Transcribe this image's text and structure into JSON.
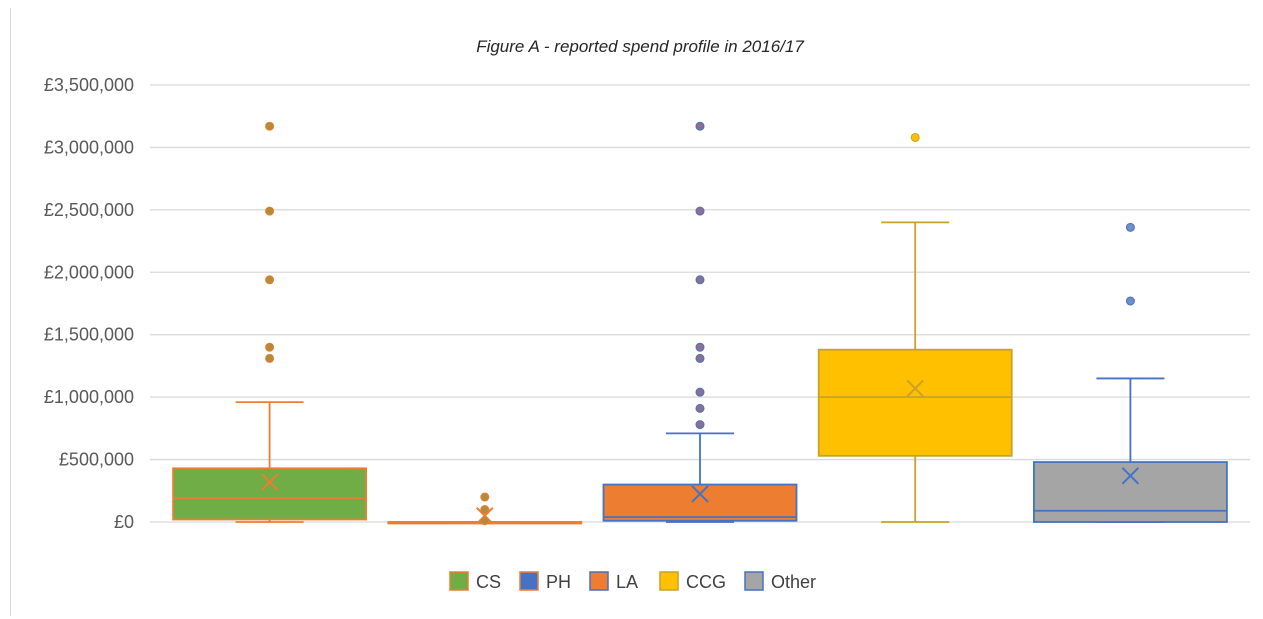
{
  "chart_data": {
    "type": "box",
    "title": "Figure A - reported spend profile in 2016/17",
    "xlabel": "",
    "ylabel": "",
    "ylim": [
      0,
      3500000
    ],
    "y_tick_values": [
      0,
      500000,
      1000000,
      1500000,
      2000000,
      2500000,
      3000000,
      3500000
    ],
    "y_tick_labels": [
      "£0",
      "£500,000",
      "£1,000,000",
      "£1,500,000",
      "£2,000,000",
      "£2,500,000",
      "£3,000,000",
      "£3,500,000"
    ],
    "grid": true,
    "legend_position": "bottom",
    "series": [
      {
        "name": "CS",
        "fill": "#70ad47",
        "stroke": "#ed7d31",
        "outlier_color": "#b38b3a",
        "min": 0,
        "q1": 20000,
        "median": 190000,
        "mean": 320000,
        "q3": 430000,
        "max": 960000,
        "outliers": [
          1310000,
          1400000,
          1940000,
          2490000,
          3170000
        ]
      },
      {
        "name": "PH",
        "fill": "#4472c4",
        "stroke": "#ed7d31",
        "outlier_color": "#b38b3a",
        "min": 0,
        "q1": 0,
        "median": 0,
        "mean": 50000,
        "q3": 0,
        "max": 0,
        "outliers": [
          10000,
          100000,
          200000
        ]
      },
      {
        "name": "LA",
        "fill": "#ed7d31",
        "stroke": "#4472c4",
        "outlier_color": "#8f6f90",
        "min": 0,
        "q1": 10000,
        "median": 40000,
        "mean": 225000,
        "q3": 300000,
        "max": 710000,
        "outliers": [
          780000,
          910000,
          1040000,
          1310000,
          1400000,
          1940000,
          2490000,
          3170000
        ]
      },
      {
        "name": "CCG",
        "fill": "#ffc000",
        "stroke": "#c9a227",
        "outlier_color": "#ffc000",
        "min": 0,
        "q1": 530000,
        "median": 1000000,
        "mean": 1070000,
        "q3": 1380000,
        "max": 2400000,
        "outliers": [
          3080000
        ]
      },
      {
        "name": "Other",
        "fill": "#a5a5a5",
        "stroke": "#4472c4",
        "outlier_color": "#6f8fc9",
        "min": 0,
        "q1": 0,
        "median": 90000,
        "mean": 370000,
        "q3": 480000,
        "max": 1150000,
        "outliers": [
          1770000,
          2360000
        ]
      }
    ]
  }
}
